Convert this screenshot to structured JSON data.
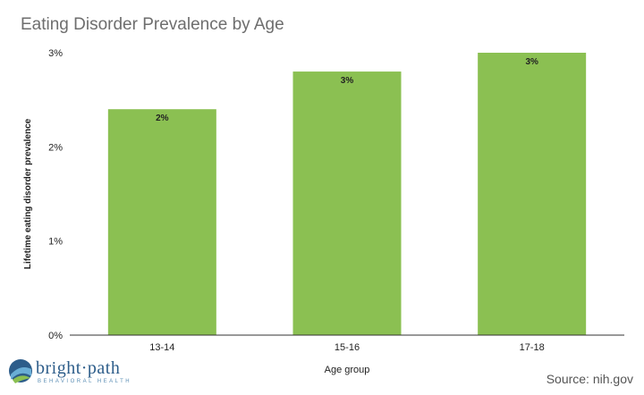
{
  "chart_data": {
    "type": "bar",
    "title": "Eating Disorder Prevalence by Age",
    "xlabel": "Age group",
    "ylabel": "Lifetime eating disorder prevalence",
    "categories": [
      "13-14",
      "15-16",
      "17-18"
    ],
    "values": [
      2.4,
      2.8,
      3.0
    ],
    "data_labels": [
      "2%",
      "3%",
      "3%"
    ],
    "yticks": [
      0,
      1,
      2,
      3
    ],
    "ytick_labels": [
      "0%",
      "1%",
      "2%",
      "3%"
    ],
    "ylim": [
      0,
      3
    ],
    "grid": false,
    "bar_color": "#8bc052"
  },
  "branding": {
    "logo_text": "bright·path",
    "logo_subtext": "BEHAVIORAL HEALTH",
    "logo_colors": [
      "#2d5d8a",
      "#6aaed6",
      "#8bc052"
    ]
  },
  "source_text": "Source: nih.gov"
}
